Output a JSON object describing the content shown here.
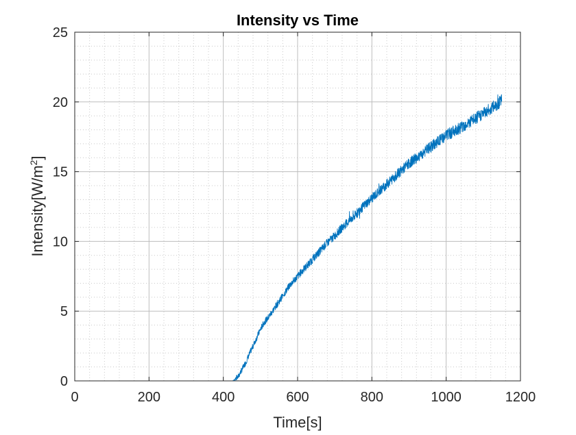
{
  "chart_data": {
    "type": "line",
    "title": "Intensity vs Time",
    "xlabel": "Time[s]",
    "ylabel_main": "Intensity[W/m",
    "ylabel_sup": "2",
    "ylabel_tail": "]",
    "xlim": [
      0,
      1200
    ],
    "ylim": [
      0,
      25
    ],
    "x_ticks": [
      0,
      200,
      400,
      600,
      800,
      1000,
      1200
    ],
    "y_ticks": [
      0,
      5,
      10,
      15,
      20,
      25
    ],
    "x_tick_labels": [
      "0",
      "200",
      "400",
      "600",
      "800",
      "1000",
      "1200"
    ],
    "y_tick_labels": [
      "0",
      "5",
      "10",
      "15",
      "20",
      "25"
    ],
    "grid": true,
    "minor_grid": true,
    "box": true,
    "series": [
      {
        "color": "#0072BD",
        "x": [
          0,
          100,
          200,
          300,
          400,
          425,
          430,
          440,
          450,
          460,
          470,
          480,
          490,
          500,
          510,
          520,
          530,
          540,
          550,
          560,
          570,
          580,
          590,
          600,
          620,
          640,
          660,
          680,
          700,
          720,
          740,
          760,
          780,
          800,
          820,
          840,
          860,
          880,
          900,
          920,
          940,
          960,
          980,
          1000,
          1020,
          1040,
          1060,
          1080,
          1100,
          1120,
          1140,
          1150
        ],
        "y": [
          0,
          0,
          0,
          0,
          0,
          0,
          0.1,
          0.3,
          0.8,
          1.3,
          1.9,
          2.5,
          3.1,
          3.7,
          4.2,
          4.5,
          4.9,
          5.3,
          5.7,
          6.1,
          6.5,
          6.9,
          7.2,
          7.5,
          8.1,
          8.7,
          9.3,
          9.9,
          10.4,
          11.0,
          11.5,
          12.0,
          12.6,
          13.1,
          13.6,
          14.1,
          14.6,
          15.1,
          15.6,
          16.0,
          16.4,
          16.8,
          17.2,
          17.6,
          17.9,
          18.2,
          18.5,
          18.8,
          19.2,
          19.5,
          19.9,
          20.1
        ]
      }
    ]
  }
}
